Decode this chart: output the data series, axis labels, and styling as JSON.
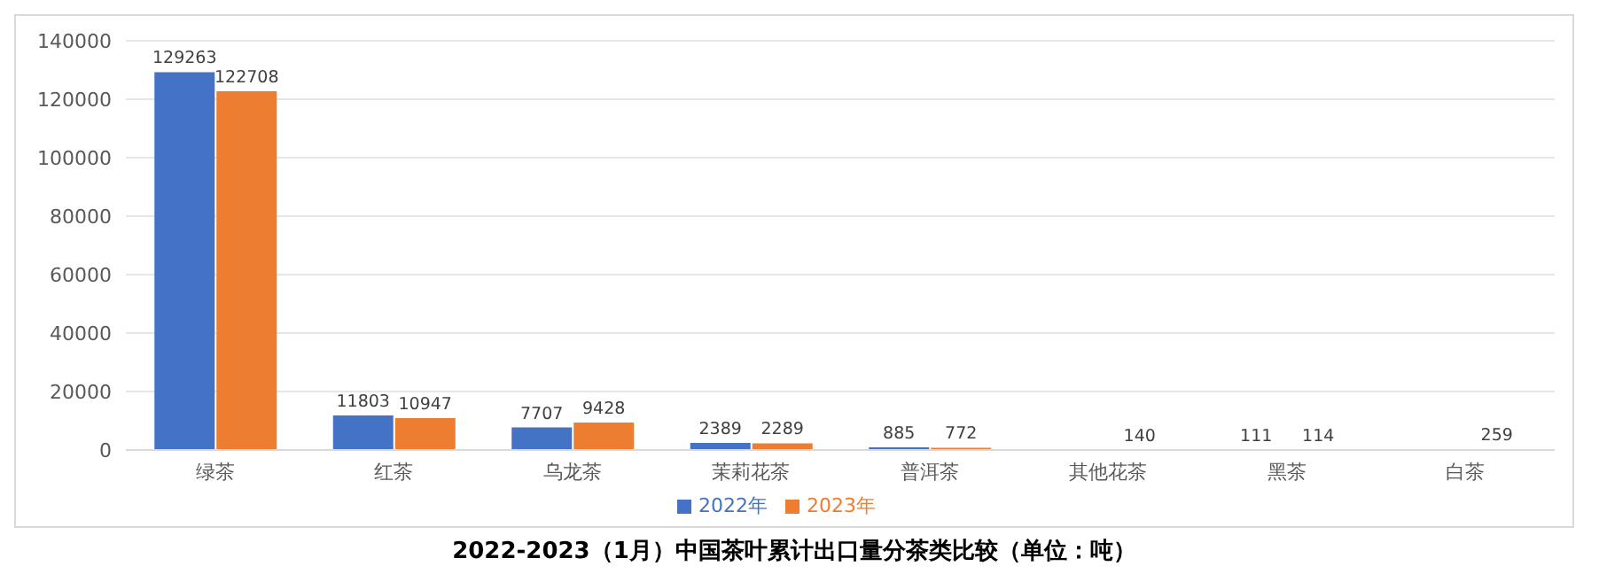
{
  "chart_data": {
    "type": "bar",
    "title": "2022-2023（1月）中国茶叶累计出口量分茶类比较（单位：吨）",
    "categories": [
      "绿茶",
      "红茶",
      "乌龙茶",
      "茉莉花茶",
      "普洱茶",
      "其他花茶",
      "黑茶",
      "白茶"
    ],
    "series": [
      {
        "name": "2022年",
        "color": "#4472c4",
        "values": [
          129263,
          11803,
          7707,
          2389,
          885,
          null,
          111,
          null
        ]
      },
      {
        "name": "2023年",
        "color": "#ed7d31",
        "values": [
          122708,
          10947,
          9428,
          2289,
          772,
          140,
          114,
          259
        ]
      }
    ],
    "ylim": [
      0,
      140000
    ],
    "yticks": [
      0,
      20000,
      40000,
      60000,
      80000,
      100000,
      120000,
      140000
    ],
    "grid": "y",
    "legend": "bottom",
    "data_labels": true
  }
}
